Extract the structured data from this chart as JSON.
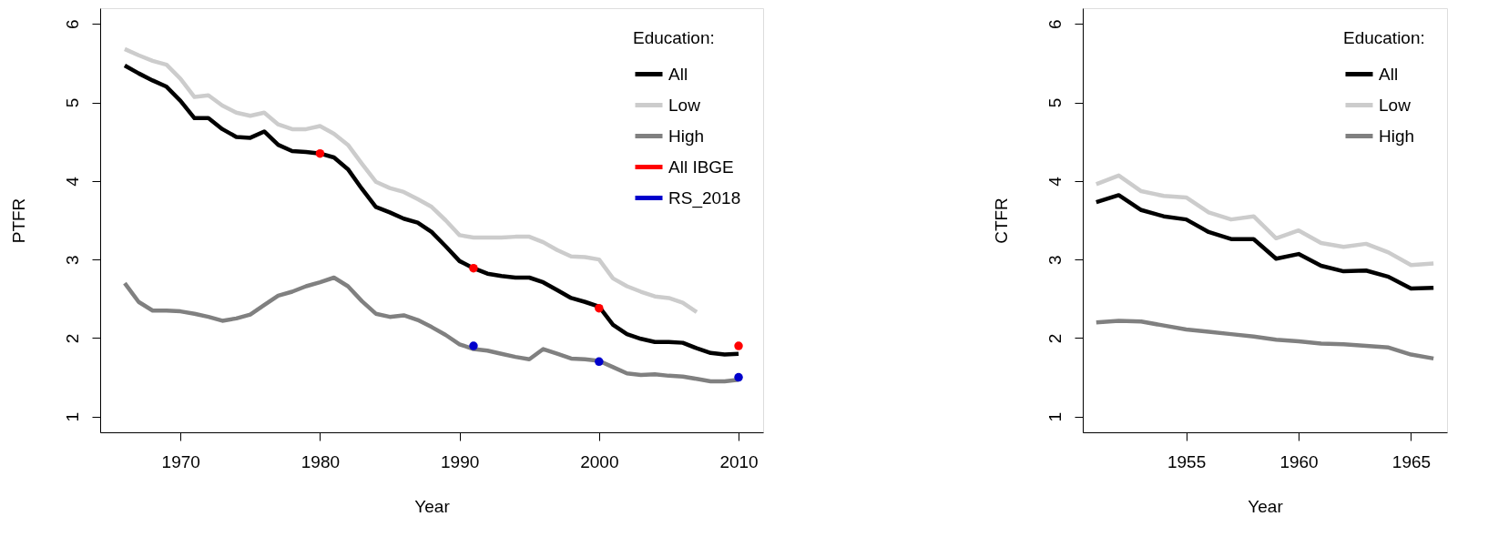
{
  "chart_data": [
    {
      "type": "line",
      "xlabel": "Year",
      "ylabel": "PTFR",
      "legend_title": "Education:",
      "legend": "top right",
      "grid": false,
      "marker": "none",
      "line_style": "solid",
      "x": [
        1966,
        1967,
        1968,
        1969,
        1970,
        1971,
        1972,
        1973,
        1974,
        1975,
        1976,
        1977,
        1978,
        1979,
        1980,
        1981,
        1982,
        1983,
        1984,
        1985,
        1986,
        1987,
        1988,
        1989,
        1990,
        1991,
        1992,
        1993,
        1994,
        1995,
        1996,
        1997,
        1998,
        1999,
        2000,
        2001,
        2002,
        2003,
        2004,
        2005,
        2006,
        2007,
        2008,
        2009,
        2010
      ],
      "xlim": [
        1964.24,
        2011.76
      ],
      "xticks": [
        1970,
        1980,
        1990,
        2000,
        2010
      ],
      "ylim": [
        0.8,
        6.2
      ],
      "yticks": [
        1,
        2,
        3,
        4,
        5,
        6
      ],
      "series": [
        {
          "name": "All",
          "color": "#000000",
          "values": [
            5.47,
            5.37,
            5.28,
            5.2,
            5.02,
            4.8,
            4.8,
            4.66,
            4.56,
            4.55,
            4.63,
            4.46,
            4.38,
            4.37,
            4.35,
            4.3,
            4.15,
            3.9,
            3.67,
            3.6,
            3.52,
            3.47,
            3.35,
            3.17,
            2.98,
            2.89,
            2.82,
            2.79,
            2.77,
            2.77,
            2.71,
            2.61,
            2.51,
            2.46,
            2.4,
            2.17,
            2.05,
            1.99,
            1.95,
            1.95,
            1.94,
            1.87,
            1.81,
            1.79,
            1.8
          ]
        },
        {
          "name": "Low",
          "color": "#cccccc",
          "values": [
            5.68,
            5.6,
            5.53,
            5.48,
            5.3,
            5.07,
            5.09,
            4.96,
            4.87,
            4.83,
            4.87,
            4.72,
            4.66,
            4.66,
            4.7,
            4.6,
            4.46,
            4.22,
            3.99,
            3.91,
            3.86,
            3.77,
            3.67,
            3.5,
            3.31,
            3.28,
            3.28,
            3.28,
            3.29,
            3.29,
            3.22,
            3.12,
            3.04,
            3.03,
            3.0,
            2.76,
            2.66,
            2.59,
            2.53,
            2.51,
            2.45,
            2.33,
            null,
            null,
            null
          ]
        },
        {
          "name": "High",
          "color": "#808080",
          "values": [
            2.7,
            2.46,
            2.35,
            2.35,
            2.34,
            2.31,
            2.27,
            2.22,
            2.25,
            2.3,
            2.42,
            2.54,
            2.59,
            2.66,
            2.71,
            2.77,
            2.66,
            2.47,
            2.31,
            2.27,
            2.29,
            2.23,
            2.14,
            2.04,
            1.92,
            1.86,
            1.84,
            1.8,
            1.76,
            1.73,
            1.86,
            1.8,
            1.74,
            1.73,
            1.71,
            1.63,
            1.55,
            1.53,
            1.54,
            1.52,
            1.51,
            1.48,
            1.45,
            1.45,
            1.47
          ]
        },
        {
          "name": "All IBGE",
          "type": "scatter",
          "marker": "circle",
          "color": "#ff0000",
          "x": [
            1980,
            1991,
            2000,
            2010
          ],
          "values": [
            4.35,
            2.89,
            2.38,
            1.9
          ]
        },
        {
          "name": "RS_2018",
          "type": "scatter",
          "marker": "circle",
          "color": "#0000cc",
          "x": [
            1991,
            2000,
            2010
          ],
          "values": [
            1.9,
            1.7,
            1.5
          ]
        }
      ]
    },
    {
      "type": "line",
      "xlabel": "Year",
      "ylabel": "CTFR",
      "legend_title": "Education:",
      "legend": "top right",
      "grid": false,
      "marker": "none",
      "line_style": "solid",
      "x": [
        1951,
        1952,
        1953,
        1954,
        1955,
        1956,
        1957,
        1958,
        1959,
        1960,
        1961,
        1962,
        1963,
        1964,
        1965,
        1966
      ],
      "xlim": [
        1950.4,
        1966.6
      ],
      "xticks": [
        1955,
        1960,
        1965
      ],
      "ylim": [
        0.8,
        6.2
      ],
      "yticks": [
        1,
        2,
        3,
        4,
        5,
        6
      ],
      "series": [
        {
          "name": "All",
          "color": "#000000",
          "values": [
            3.73,
            3.82,
            3.63,
            3.55,
            3.51,
            3.35,
            3.26,
            3.26,
            3.01,
            3.07,
            2.92,
            2.85,
            2.86,
            2.78,
            2.63,
            2.64
          ]
        },
        {
          "name": "Low",
          "color": "#cccccc",
          "values": [
            3.96,
            4.07,
            3.87,
            3.81,
            3.79,
            3.6,
            3.51,
            3.55,
            3.27,
            3.37,
            3.21,
            3.16,
            3.2,
            3.09,
            2.93,
            2.95
          ]
        },
        {
          "name": "High",
          "color": "#808080",
          "values": [
            2.2,
            2.22,
            2.21,
            2.16,
            2.11,
            2.08,
            2.05,
            2.02,
            1.98,
            1.96,
            1.93,
            1.92,
            1.9,
            1.88,
            1.79,
            1.74
          ]
        }
      ]
    }
  ]
}
